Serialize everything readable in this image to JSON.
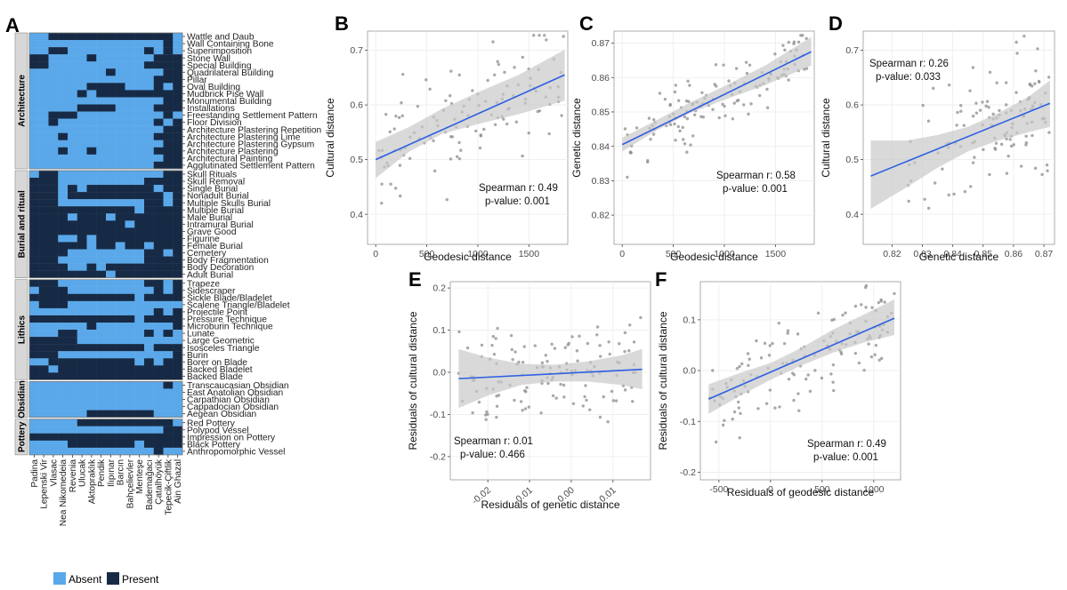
{
  "panel_letters": {
    "A": "A",
    "B": "B",
    "C": "C",
    "D": "D",
    "E": "E",
    "F": "F"
  },
  "colors": {
    "absent": "#5aa8ea",
    "present": "#172a45",
    "fit_line": "#2d5fe0",
    "ribbon": "#c9c9c9",
    "point": "#8c8c8c",
    "strip": "#d7d7d7",
    "grid": "#ececec"
  },
  "heatmap": {
    "groups": [
      {
        "name": "Architecture",
        "rows": [
          "Wattle and Daub",
          "Wall Containing Bone",
          "Superimposition",
          "Stone Wall",
          "Special Building",
          "Quadrilateral Building",
          "Pillar",
          "Oval Building",
          "Mudbrick Pise Wall",
          "Monumental Building",
          "Installations",
          "Freestanding Settlement Pattern",
          "Floor Division",
          "Architecture Plastering Repetition",
          "Architecture Plastering Lime",
          "Architecture Plastering Gypsum",
          "Architecture Plastering",
          "Architectural Painting",
          "Agglutinated Settlement Pattern"
        ]
      },
      {
        "name": "Burial and ritual",
        "rows": [
          "Skull Rituals",
          "Skull Removal",
          "Single Burial",
          "Nonadult Burial",
          "Multiple Skulls Burial",
          "Multiple Burial",
          "Male Burial",
          "Intramural Burial",
          "Grave Good",
          "Figurine",
          "Female Burial",
          "Cemetery",
          "Body Fragmentation",
          "Body Decoration",
          "Adult Burial"
        ]
      },
      {
        "name": "Lithics",
        "rows": [
          "Trapeze",
          "Sidescraper",
          "Sickle Blade/Bladelet",
          "Scalene Triangle/Bladelet",
          "Projectile Point",
          "Pressure Technique",
          "Microburin Technique",
          "Lunate",
          "Large Geometric",
          "Isosceles Triangle",
          "Burin",
          "Borer on Blade",
          "Backed Bladelet",
          "Backed Blade"
        ]
      },
      {
        "name": "Obsidian",
        "rows": [
          "Transcaucasian Obsidian",
          "East Anatolian Obsidian",
          "Carpathian Obsidian",
          "Cappadocian Obsidian",
          "Aegean Obsidian"
        ]
      },
      {
        "name": "Pottery",
        "rows": [
          "Red Pottery",
          "Polypod Vessel",
          "Impression on Pottery",
          "Black Pottery",
          "Anthropomorphic Vessel"
        ]
      }
    ],
    "sites": [
      "Padina",
      "Lepenski Vir",
      "Vlasac",
      "Nea Nikomedeia",
      "Revenia",
      "Ulucak",
      "Aktopraklık",
      "Pendik",
      "Ilıpınar",
      "Barcın",
      "Bahçelievler",
      "Menteşe",
      "Bademağacı",
      "Çatalhöyük",
      "Tepecik-Çiftlik",
      "Ain Ghazal"
    ],
    "matrix": [
      "0011111111111110",
      "0000000000000010",
      "0011000000001010",
      "1100001000000111",
      "1100000000001111",
      "0000000010000011",
      "0000000000000111",
      "0000001111000101",
      "0000010111111111",
      "0000000000000011",
      "0000011110000111",
      "0011100000000010",
      "0010000000000101",
      "0000000000000011",
      "0001000000000111",
      "0000000000000011",
      "0001001000000111",
      "0000000000000011",
      "0000000000000111",
      "0110000000000011",
      "1110000000001111",
      "1110101111111011",
      "1110111111111101",
      "1110000000001101",
      "1111111111101111",
      "1111011101111111",
      "1111111111011111",
      "1111111111111111",
      "1110010111111111",
      "1111110110110111",
      "1111000000001101",
      "1110000000001111",
      "1111001011111111",
      "1111111101111111",
      "1110000000001101",
      "0111000000000101",
      "1111111111101111",
      "0111000000000000",
      "0000000000000101",
      "1111111111101111",
      "0000001000000001",
      "0001100000001010",
      "1111100000000000",
      "1111111111110111",
      "1110000000000001",
      "0011111111101011",
      "1101111111111111",
      "1111111111111111",
      "0000000000000010",
      "0000000000000000",
      "0000000000000000",
      "0000000000000000",
      "0000001111111000",
      "0000011111111110",
      "0000000000000011",
      "1111111111111111",
      "0000111111101111",
      "0000000000000100"
    ],
    "legend": {
      "absent": "Absent",
      "present": "Present"
    }
  },
  "chart_data": [
    {
      "panel": "B",
      "type": "scatter",
      "xlabel": "Geodesic distance",
      "ylabel": "Cultural distance",
      "xlim": [
        -80,
        1880
      ],
      "ylim": [
        0.345,
        0.735
      ],
      "xticks": [
        0,
        500,
        1000,
        1500
      ],
      "yticks": [
        0.4,
        0.5,
        0.6,
        0.7
      ],
      "fit": {
        "x": [
          0,
          1850
        ],
        "y": [
          0.5,
          0.655
        ]
      },
      "ribbon": {
        "x": [
          0,
          330,
          650,
          1000,
          1400,
          1850
        ],
        "lo": [
          0.466,
          0.515,
          0.547,
          0.565,
          0.583,
          0.608
        ],
        "hi": [
          0.532,
          0.56,
          0.593,
          0.623,
          0.655,
          0.701
        ]
      },
      "annotation": [
        "Spearman r: 0.49",
        "p-value: 0.001"
      ],
      "grid": true,
      "seed": 11,
      "n": 120,
      "noise": 0.095
    },
    {
      "panel": "C",
      "type": "scatter",
      "xlabel": "Geodesic distance",
      "ylabel": "Genetic distance",
      "xlim": [
        -80,
        1880
      ],
      "ylim": [
        0.8115,
        0.8735
      ],
      "xticks": [
        0,
        500,
        1000,
        1500
      ],
      "yticks": [
        0.82,
        0.83,
        0.84,
        0.85,
        0.86,
        0.87
      ],
      "fit": {
        "x": [
          0,
          1850
        ],
        "y": [
          0.8405,
          0.8675
        ]
      },
      "ribbon": {
        "x": [
          0,
          330,
          650,
          1000,
          1400,
          1850
        ],
        "lo": [
          0.8385,
          0.8445,
          0.8495,
          0.8535,
          0.8578,
          0.8635
        ],
        "hi": [
          0.8425,
          0.8475,
          0.8525,
          0.8575,
          0.8635,
          0.8718
        ]
      },
      "annotation": [
        "Spearman r: 0.58",
        "p-value: 0.001"
      ],
      "grid": true,
      "seed": 23,
      "n": 130,
      "noise": 0.009
    },
    {
      "panel": "D",
      "type": "scatter",
      "xlabel": "Genetic distance",
      "ylabel": "Cultural distance",
      "xlim": [
        0.8105,
        0.8735
      ],
      "ylim": [
        0.345,
        0.735
      ],
      "xticks": [
        0.82,
        0.83,
        0.84,
        0.85,
        0.86,
        0.87
      ],
      "yticks": [
        0.4,
        0.5,
        0.6,
        0.7
      ],
      "fit": {
        "x": [
          0.813,
          0.872
        ],
        "y": [
          0.47,
          0.603
        ]
      },
      "ribbon": {
        "x": [
          0.813,
          0.825,
          0.835,
          0.845,
          0.855,
          0.865,
          0.872
        ],
        "lo": [
          0.41,
          0.45,
          0.485,
          0.515,
          0.535,
          0.55,
          0.56
        ],
        "hi": [
          0.535,
          0.535,
          0.545,
          0.56,
          0.585,
          0.615,
          0.645
        ]
      },
      "annotation": [
        "Spearman r: 0.26",
        "p-value: 0.033"
      ],
      "grid": true,
      "seed": 37,
      "n": 120,
      "noise": 0.1
    },
    {
      "panel": "E",
      "type": "scatter",
      "xlabel": "Residuals of genetic distance",
      "ylabel": "Residuals of cultural distance",
      "xlim": [
        -0.029,
        0.019
      ],
      "ylim": [
        -0.255,
        0.215
      ],
      "xticks": [
        -0.02,
        -0.01,
        0.0,
        0.01
      ],
      "xticklabels": [
        "-0.02",
        "-0.01",
        "0.00",
        "0.01"
      ],
      "yticks": [
        -0.2,
        -0.1,
        0.0,
        0.1,
        0.2
      ],
      "yticklabels": [
        "-0.2",
        "-0.1",
        "0.0",
        "0.1",
        "0.2"
      ],
      "fit": {
        "x": [
          -0.027,
          0.017
        ],
        "y": [
          -0.015,
          0.007
        ]
      },
      "ribbon": {
        "x": [
          -0.027,
          -0.02,
          -0.012,
          -0.004,
          0.004,
          0.012,
          0.017
        ],
        "lo": [
          -0.085,
          -0.055,
          -0.03,
          -0.022,
          -0.022,
          -0.03,
          -0.04
        ],
        "hi": [
          0.055,
          0.035,
          0.02,
          0.018,
          0.026,
          0.04,
          0.055
        ]
      },
      "annotation": [
        "Spearman r: 0.01",
        "p-value: 0.466"
      ],
      "grid": true,
      "seed": 51,
      "n": 130,
      "noise": 0.09
    },
    {
      "panel": "F",
      "type": "scatter",
      "xlabel": "Residuals of geodesic distance",
      "ylabel": "Residuals of cultural distance",
      "xlim": [
        -680,
        1260
      ],
      "ylim": [
        -0.215,
        0.175
      ],
      "xticks": [
        -500,
        0,
        500,
        1000
      ],
      "yticks": [
        -0.2,
        -0.1,
        0.0,
        0.1
      ],
      "yticklabels": [
        "-0.2",
        "-0.1",
        "0.0",
        "0.1"
      ],
      "fit": {
        "x": [
          -600,
          1200
        ],
        "y": [
          -0.056,
          0.103
        ]
      },
      "ribbon": {
        "x": [
          -600,
          -300,
          0,
          300,
          600,
          900,
          1200
        ],
        "lo": [
          -0.085,
          -0.05,
          -0.018,
          0.01,
          0.035,
          0.055,
          0.07
        ],
        "hi": [
          -0.027,
          -0.005,
          0.015,
          0.045,
          0.08,
          0.11,
          0.14
        ]
      },
      "annotation": [
        "Spearman r: 0.49",
        "p-value: 0.001"
      ],
      "grid": true,
      "seed": 67,
      "n": 130,
      "noise": 0.075
    }
  ]
}
